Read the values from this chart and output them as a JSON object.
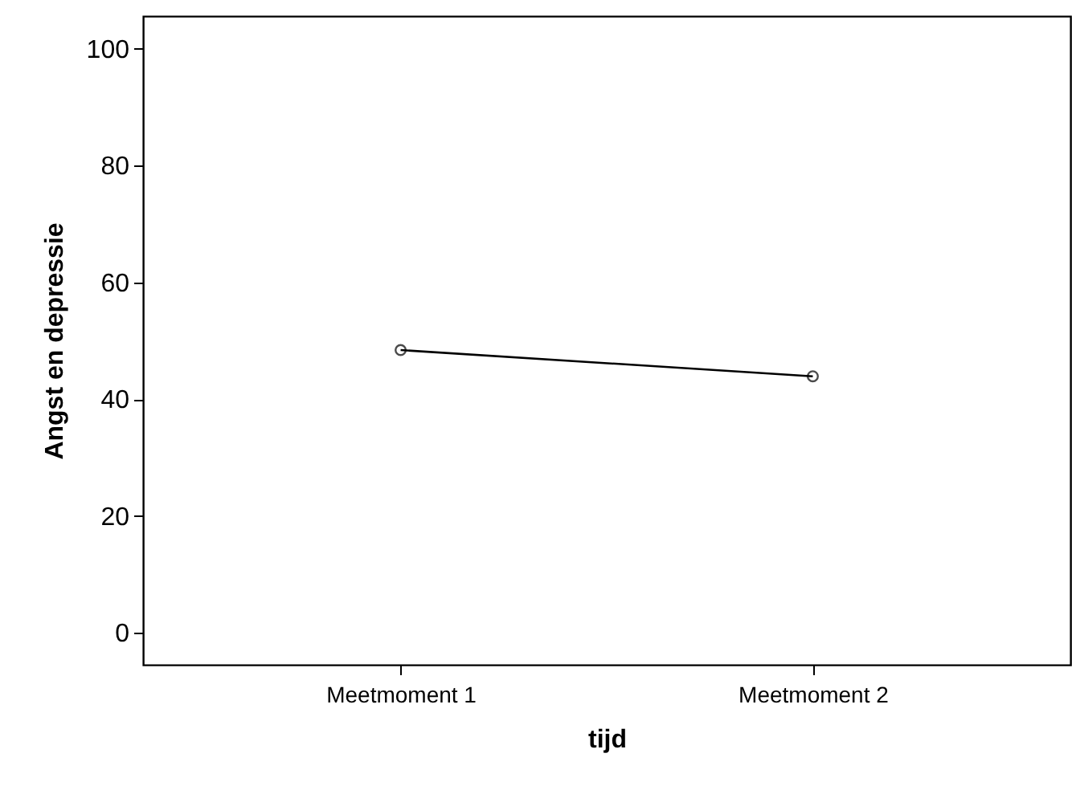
{
  "chart_data": {
    "type": "line",
    "xlabel": "tijd",
    "ylabel": "Angst en depressie",
    "categories": [
      "Meetmoment 1",
      "Meetmoment 2"
    ],
    "series": [
      {
        "color": "#000000",
        "values": [
          48.4,
          43.9
        ]
      }
    ],
    "ylim": [
      -5.5,
      105.6
    ],
    "yticks": [
      0,
      20,
      40,
      60,
      80,
      100
    ],
    "grid": false,
    "marker": "circle",
    "line_style": "solid"
  }
}
